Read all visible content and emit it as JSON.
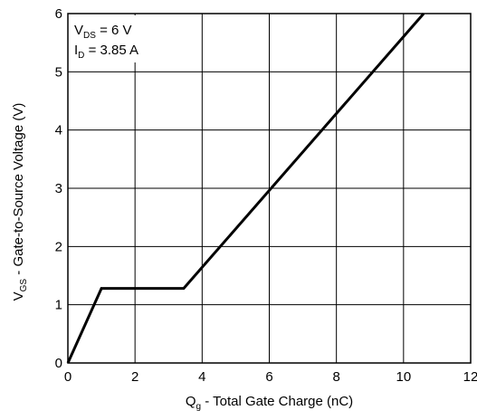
{
  "chart_data": {
    "type": "line",
    "title": "",
    "xlabel": {
      "main": "Q",
      "sub": "g",
      "rest": " - Total Gate Charge (nC)"
    },
    "ylabel": {
      "main": "V",
      "sub": "GS",
      "rest": " - Gate-to-Source Voltage (V)"
    },
    "xlim": [
      0,
      12
    ],
    "ylim": [
      0,
      6
    ],
    "x_ticks": [
      0,
      2,
      4,
      6,
      8,
      10,
      12
    ],
    "y_ticks": [
      0,
      1,
      2,
      3,
      4,
      5,
      6
    ],
    "grid": true,
    "annotation": {
      "line1": {
        "main": "V",
        "sub": "DS",
        "rest": " = 6 V"
      },
      "line2": {
        "main": "I",
        "sub": "D",
        "rest": " = 3.85 A"
      }
    },
    "series": [
      {
        "x": [
          0,
          1.0,
          3.45,
          10.6
        ],
        "y": [
          0,
          1.28,
          1.28,
          6.0
        ]
      }
    ]
  }
}
